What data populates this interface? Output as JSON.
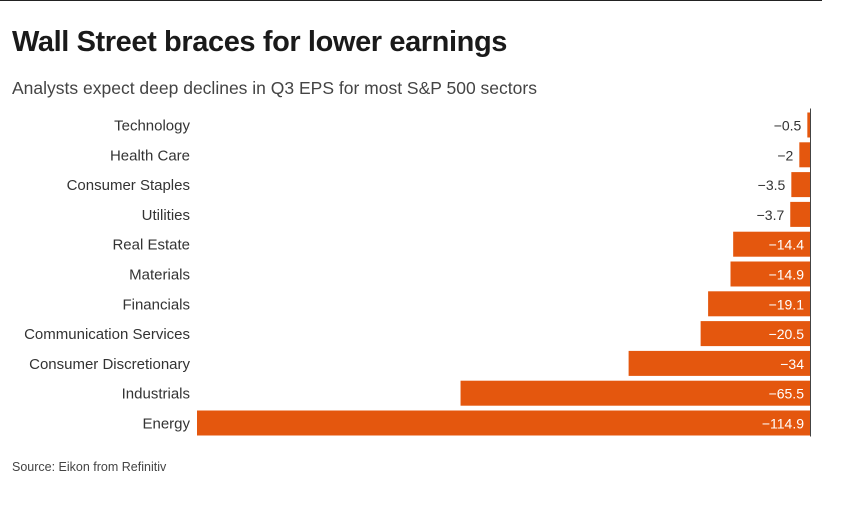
{
  "title": "Wall Street braces for lower earnings",
  "subtitle": "Analysts expect deep declines in Q3 EPS for most S&P 500 sectors",
  "source": "Source: Eikon from Refinitiv",
  "colors": {
    "bar": "#e4570e",
    "axis": "#444444",
    "label_inside": "#ffffff",
    "label_outside": "#333333"
  },
  "chart_data": {
    "type": "bar",
    "orientation": "horizontal",
    "categories": [
      "Technology",
      "Health Care",
      "Consumer Staples",
      "Utilities",
      "Real Estate",
      "Materials",
      "Financials",
      "Communication Services",
      "Consumer Discretionary",
      "Industrials",
      "Energy"
    ],
    "values": [
      -0.5,
      -2,
      -3.5,
      -3.7,
      -14.4,
      -14.9,
      -19.1,
      -20.5,
      -34,
      -65.5,
      -114.9
    ],
    "value_labels": [
      "−0.5",
      "−2",
      "−3.5",
      "−3.7",
      "−14.4",
      "−14.9",
      "−19.1",
      "−20.5",
      "−34",
      "−65.5",
      "−114.9"
    ],
    "xlim": [
      -114.9,
      0
    ],
    "grid": false,
    "legend": "none"
  }
}
